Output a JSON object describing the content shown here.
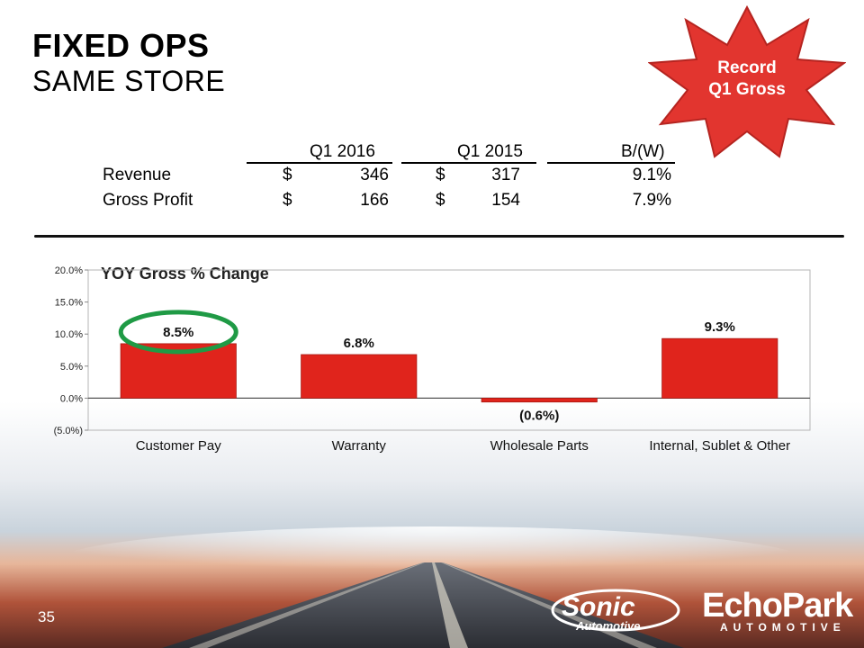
{
  "slide": {
    "title": "FIXED OPS",
    "subtitle": "SAME STORE",
    "page_number": "35",
    "badge": {
      "line1": "Record",
      "line2": "Q1 Gross",
      "color": "#e2352f"
    }
  },
  "table": {
    "headers": [
      "Q1 2016",
      "Q1 2015",
      "B/(W)"
    ],
    "rows": [
      {
        "label": "Revenue",
        "q1_2016_cur": "$",
        "q1_2016": "346",
        "q1_2015_cur": "$",
        "q1_2015": "317",
        "bw": "9.1%"
      },
      {
        "label": "Gross Profit",
        "q1_2016_cur": "$",
        "q1_2016": "166",
        "q1_2015_cur": "$",
        "q1_2015": "154",
        "bw": "7.9%"
      }
    ]
  },
  "chart_data": {
    "type": "bar",
    "title": "YOY Gross % Change",
    "categories": [
      "Customer Pay",
      "Warranty",
      "Wholesale Parts",
      "Internal, Sublet & Other"
    ],
    "values": [
      8.5,
      6.8,
      -0.6,
      9.3
    ],
    "data_labels": [
      "8.5%",
      "6.8%",
      "(0.6%)",
      "9.3%"
    ],
    "y_ticks": [
      20,
      15,
      10,
      5,
      0,
      -5
    ],
    "y_tick_labels": [
      "20.0%",
      "15.0%",
      "10.0%",
      "5.0%",
      "0.0%",
      "(5.0%)"
    ],
    "ylim": [
      -5,
      20
    ],
    "bar_color": "#e0241c",
    "highlight_category": "Customer Pay",
    "highlight_color": "#1f9a45"
  },
  "logos": {
    "sonic": "Sonic",
    "sonic_sub": "Automotive",
    "echopark": "EchoPark",
    "echopark_sub": "AUTOMOTIVE"
  }
}
